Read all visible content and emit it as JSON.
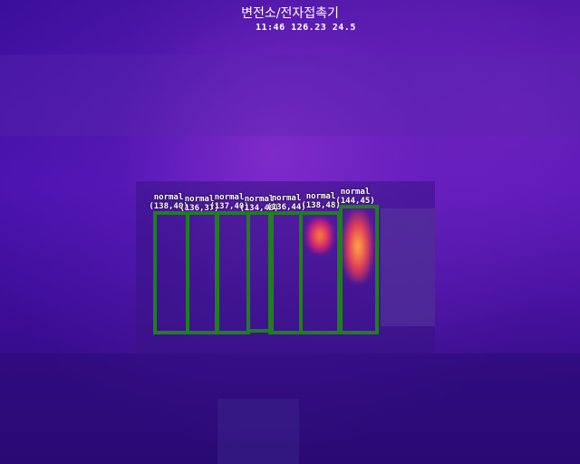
{
  "header": {
    "title": "변전소/전자접촉기",
    "stats": "11:46 126.23 24.5"
  },
  "detections": [
    {
      "status": "normal",
      "value": "(138,40)"
    },
    {
      "status": "normal",
      "value": "(136,37)"
    },
    {
      "status": "normal",
      "value": "(137,40)"
    },
    {
      "status": "normal",
      "value": "(134,40)"
    },
    {
      "status": "normal",
      "value": "(136,44)"
    },
    {
      "status": "normal",
      "value": "(138,48)"
    },
    {
      "status": "normal",
      "value": "(144,45)"
    }
  ],
  "colors": {
    "box_border": "#1f7f1f",
    "hotspot": "#ff8a2a",
    "background": "#3b0f9a"
  }
}
